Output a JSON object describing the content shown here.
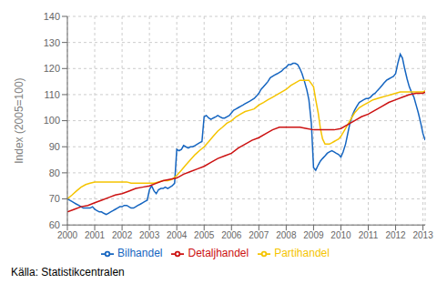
{
  "chart_data": {
    "type": "line",
    "ylabel": "Index (2005=100)",
    "source": "Källa: Statistikcentralen",
    "xlim": [
      2000,
      2013.08
    ],
    "ylim": [
      60,
      140
    ],
    "yticks": [
      60,
      70,
      80,
      90,
      100,
      110,
      120,
      130,
      140
    ],
    "xticks": [
      2000,
      2001,
      2002,
      2003,
      2004,
      2005,
      2006,
      2007,
      2008,
      2009,
      2010,
      2011,
      2012,
      2013
    ],
    "grid": true,
    "legend": "bottom",
    "series": [
      {
        "name": "Bilhandel",
        "color": "#1565c0",
        "x": [
          2000.0,
          2000.08,
          2000.17,
          2000.25,
          2000.33,
          2000.42,
          2000.5,
          2000.58,
          2000.67,
          2000.75,
          2000.83,
          2000.92,
          2001.0,
          2001.08,
          2001.17,
          2001.25,
          2001.33,
          2001.42,
          2001.5,
          2001.58,
          2001.67,
          2001.75,
          2001.83,
          2001.92,
          2002.0,
          2002.08,
          2002.17,
          2002.25,
          2002.33,
          2002.42,
          2002.5,
          2002.58,
          2002.67,
          2002.75,
          2002.83,
          2002.92,
          2003.0,
          2003.08,
          2003.17,
          2003.25,
          2003.33,
          2003.42,
          2003.5,
          2003.58,
          2003.67,
          2003.75,
          2003.83,
          2003.92,
          2004.0,
          2004.08,
          2004.17,
          2004.25,
          2004.33,
          2004.42,
          2004.5,
          2004.58,
          2004.67,
          2004.75,
          2004.83,
          2004.92,
          2005.0,
          2005.08,
          2005.17,
          2005.25,
          2005.33,
          2005.42,
          2005.5,
          2005.58,
          2005.67,
          2005.75,
          2005.83,
          2005.92,
          2006.0,
          2006.08,
          2006.17,
          2006.25,
          2006.33,
          2006.42,
          2006.5,
          2006.58,
          2006.67,
          2006.75,
          2006.83,
          2006.92,
          2007.0,
          2007.08,
          2007.17,
          2007.25,
          2007.33,
          2007.42,
          2007.5,
          2007.58,
          2007.67,
          2007.75,
          2007.83,
          2007.92,
          2008.0,
          2008.08,
          2008.17,
          2008.25,
          2008.33,
          2008.42,
          2008.5,
          2008.58,
          2008.67,
          2008.75,
          2008.83,
          2008.92,
          2009.0,
          2009.08,
          2009.17,
          2009.25,
          2009.33,
          2009.42,
          2009.5,
          2009.58,
          2009.67,
          2009.75,
          2009.83,
          2009.92,
          2010.0,
          2010.08,
          2010.17,
          2010.25,
          2010.33,
          2010.42,
          2010.5,
          2010.58,
          2010.67,
          2010.75,
          2010.83,
          2010.92,
          2011.0,
          2011.08,
          2011.17,
          2011.25,
          2011.33,
          2011.42,
          2011.5,
          2011.58,
          2011.67,
          2011.75,
          2011.83,
          2011.92,
          2012.0,
          2012.08,
          2012.17,
          2012.25,
          2012.33,
          2012.42,
          2012.5,
          2012.58,
          2012.67,
          2012.75,
          2012.83,
          2012.92,
          2013.0,
          2013.08
        ],
        "values": [
          70.0,
          69.5,
          69.0,
          68.5,
          68.0,
          67.5,
          67.0,
          66.5,
          66.5,
          66.5,
          66.5,
          67.0,
          66.0,
          65.5,
          65.0,
          65.0,
          64.5,
          64.0,
          64.5,
          65.0,
          65.5,
          66.0,
          66.5,
          67.0,
          67.0,
          67.5,
          67.5,
          67.0,
          66.5,
          66.5,
          67.0,
          67.5,
          68.0,
          68.5,
          69.0,
          69.5,
          73.5,
          75.0,
          73.0,
          72.0,
          73.5,
          74.0,
          74.0,
          74.5,
          74.0,
          74.5,
          75.0,
          76.0,
          89.0,
          88.5,
          89.0,
          90.5,
          90.0,
          89.5,
          90.0,
          90.0,
          90.5,
          91.0,
          91.5,
          92.0,
          101.5,
          102.0,
          101.0,
          100.5,
          101.0,
          101.5,
          102.0,
          101.5,
          101.0,
          101.0,
          101.5,
          102.0,
          103.0,
          104.0,
          104.5,
          105.0,
          105.5,
          106.0,
          106.5,
          107.0,
          107.5,
          108.0,
          108.5,
          109.5,
          110.5,
          112.0,
          113.0,
          114.0,
          115.0,
          116.5,
          117.0,
          117.5,
          118.0,
          118.5,
          119.0,
          120.0,
          120.5,
          121.5,
          121.5,
          122.0,
          122.0,
          121.5,
          120.0,
          118.0,
          115.0,
          112.0,
          108.0,
          99.0,
          82.0,
          81.0,
          83.0,
          84.5,
          85.5,
          86.5,
          87.5,
          88.0,
          88.5,
          88.0,
          87.5,
          87.0,
          86.0,
          88.0,
          91.0,
          95.0,
          99.0,
          102.0,
          104.0,
          105.5,
          107.0,
          107.5,
          108.0,
          108.5,
          108.5,
          109.0,
          110.0,
          110.5,
          111.5,
          112.5,
          113.5,
          114.5,
          115.5,
          116.0,
          116.5,
          117.0,
          118.0,
          122.0,
          125.5,
          124.0,
          120.0,
          116.0,
          113.0,
          111.0,
          109.0,
          106.0,
          103.0,
          99.0,
          95.0,
          92.5
        ]
      },
      {
        "name": "Partihandel",
        "color": "#f5c400",
        "x": [
          2000.0,
          2000.17,
          2000.33,
          2000.5,
          2000.67,
          2000.83,
          2001.0,
          2001.17,
          2001.33,
          2001.5,
          2001.67,
          2001.83,
          2002.0,
          2002.17,
          2002.33,
          2002.5,
          2002.67,
          2002.83,
          2003.0,
          2003.17,
          2003.33,
          2003.5,
          2003.67,
          2003.83,
          2004.0,
          2004.17,
          2004.33,
          2004.5,
          2004.67,
          2004.83,
          2005.0,
          2005.17,
          2005.33,
          2005.5,
          2005.67,
          2005.83,
          2006.0,
          2006.17,
          2006.33,
          2006.5,
          2006.67,
          2006.83,
          2007.0,
          2007.17,
          2007.33,
          2007.5,
          2007.67,
          2007.83,
          2008.0,
          2008.17,
          2008.33,
          2008.5,
          2008.67,
          2008.83,
          2009.0,
          2009.08,
          2009.17,
          2009.25,
          2009.33,
          2009.42,
          2009.5,
          2009.58,
          2009.67,
          2009.75,
          2009.83,
          2009.92,
          2010.0,
          2010.17,
          2010.33,
          2010.5,
          2010.67,
          2010.83,
          2011.0,
          2011.17,
          2011.33,
          2011.5,
          2011.67,
          2011.83,
          2012.0,
          2012.17,
          2012.33,
          2012.5,
          2012.67,
          2012.83,
          2013.0,
          2013.08
        ],
        "values": [
          70.0,
          71.5,
          73.0,
          74.5,
          75.5,
          76.0,
          76.5,
          76.5,
          76.5,
          76.5,
          76.5,
          76.5,
          76.5,
          76.5,
          76.0,
          76.0,
          76.0,
          76.0,
          76.0,
          76.0,
          76.5,
          77.0,
          77.0,
          77.5,
          79.0,
          81.0,
          83.0,
          85.0,
          87.0,
          88.5,
          90.0,
          92.0,
          94.0,
          96.0,
          97.5,
          99.0,
          100.0,
          101.5,
          102.5,
          103.5,
          104.0,
          104.5,
          106.0,
          107.0,
          108.0,
          109.0,
          110.0,
          111.0,
          112.0,
          113.5,
          114.5,
          115.5,
          115.5,
          115.5,
          113.0,
          108.0,
          103.0,
          97.0,
          93.0,
          91.0,
          91.0,
          91.0,
          91.5,
          92.0,
          92.5,
          93.0,
          94.0,
          97.0,
          100.0,
          103.0,
          105.0,
          106.0,
          107.0,
          108.0,
          108.5,
          109.0,
          109.5,
          110.0,
          110.5,
          111.0,
          111.0,
          111.0,
          111.0,
          111.0,
          111.0,
          111.5
        ]
      },
      {
        "name": "Detaljhandel",
        "color": "#cc1111",
        "x": [
          2000.0,
          2000.25,
          2000.5,
          2000.75,
          2001.0,
          2001.25,
          2001.5,
          2001.75,
          2002.0,
          2002.25,
          2002.5,
          2002.75,
          2003.0,
          2003.25,
          2003.5,
          2003.75,
          2004.0,
          2004.25,
          2004.5,
          2004.75,
          2005.0,
          2005.25,
          2005.5,
          2005.75,
          2006.0,
          2006.25,
          2006.5,
          2006.75,
          2007.0,
          2007.25,
          2007.5,
          2007.75,
          2008.0,
          2008.25,
          2008.5,
          2008.75,
          2009.0,
          2009.25,
          2009.5,
          2009.75,
          2010.0,
          2010.25,
          2010.5,
          2010.75,
          2011.0,
          2011.25,
          2011.5,
          2011.75,
          2012.0,
          2012.25,
          2012.5,
          2012.75,
          2013.0,
          2013.08
        ],
        "values": [
          65.0,
          66.0,
          67.0,
          67.5,
          68.5,
          69.5,
          70.5,
          71.5,
          72.0,
          73.0,
          74.0,
          74.5,
          75.0,
          76.0,
          77.0,
          77.5,
          78.0,
          79.5,
          80.5,
          81.5,
          82.5,
          84.0,
          85.5,
          86.5,
          87.5,
          89.5,
          91.0,
          92.5,
          93.5,
          95.0,
          96.5,
          97.5,
          97.5,
          97.5,
          97.5,
          97.0,
          96.5,
          96.5,
          96.5,
          96.5,
          97.0,
          98.5,
          100.0,
          101.5,
          102.5,
          104.0,
          105.5,
          107.0,
          108.0,
          109.0,
          110.0,
          110.5,
          110.5,
          111.0
        ]
      }
    ]
  }
}
